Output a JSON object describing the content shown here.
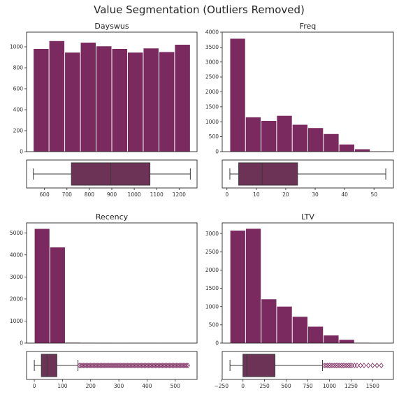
{
  "title": "Value Segmentation (Outliers Removed)",
  "colors": {
    "bar": "#7b2a5f",
    "box": "#6c3356",
    "outlier": "#7b2a5f",
    "line": "#3a3a3a"
  },
  "chart_data": [
    {
      "type": "bar",
      "title": "Dayswus",
      "bin_edges": [
        550,
        620,
        690,
        760,
        830,
        900,
        970,
        1040,
        1110,
        1180,
        1250
      ],
      "values": [
        980,
        1055,
        945,
        1040,
        1005,
        980,
        945,
        985,
        950,
        1020
      ],
      "ylim": [
        0,
        1140
      ],
      "yticks": [
        0,
        200,
        400,
        600,
        800,
        1000
      ],
      "xlim": [
        520,
        1280
      ],
      "xticks": [
        600,
        700,
        800,
        900,
        1000,
        1100,
        1200
      ],
      "box": {
        "whisker_low": 550,
        "q1": 720,
        "median": 895,
        "q3": 1070,
        "whisker_high": 1250,
        "outliers": []
      }
    },
    {
      "type": "bar",
      "title": "Freq",
      "bin_edges": [
        1,
        6.3,
        11.6,
        16.9,
        22.2,
        27.5,
        32.8,
        38.1,
        43.4,
        48.7,
        54
      ],
      "values": [
        3780,
        1150,
        1030,
        1200,
        900,
        790,
        590,
        240,
        80,
        10
      ],
      "ylim": [
        0,
        4000
      ],
      "yticks": [
        0,
        500,
        1000,
        1500,
        2000,
        2500,
        3000,
        3500,
        4000
      ],
      "xlim": [
        -1.6,
        56.6
      ],
      "xticks": [
        0,
        10,
        20,
        30,
        40,
        50
      ],
      "box": {
        "whisker_low": 1,
        "q1": 4,
        "median": 12,
        "q3": 24,
        "whisker_high": 54,
        "outliers": []
      }
    },
    {
      "type": "bar",
      "title": "Recency",
      "bin_edges": [
        0,
        55,
        110,
        165,
        220,
        275,
        330,
        385,
        440,
        495,
        550
      ],
      "values": [
        5180,
        4340,
        20,
        15,
        12,
        0,
        8,
        8,
        8,
        10
      ],
      "ylim": [
        0,
        5450
      ],
      "yticks": [
        0,
        1000,
        2000,
        3000,
        4000,
        5000
      ],
      "xlim": [
        -27.5,
        577.5
      ],
      "xticks": [
        0,
        100,
        200,
        300,
        400,
        500
      ],
      "box": {
        "whisker_low": 0,
        "q1": 25,
        "median": 45,
        "q3": 80,
        "whisker_high": 155,
        "outliers": [
          160,
          165,
          170,
          175,
          180,
          185,
          190,
          195,
          200,
          205,
          210,
          215,
          220,
          225,
          230,
          235,
          240,
          245,
          250,
          255,
          260,
          265,
          270,
          275,
          280,
          285,
          290,
          295,
          300,
          305,
          310,
          315,
          320,
          325,
          330,
          335,
          340,
          345,
          350,
          355,
          360,
          365,
          370,
          375,
          380,
          385,
          390,
          395,
          400,
          405,
          410,
          415,
          420,
          425,
          430,
          435,
          440,
          445,
          450,
          455,
          460,
          465,
          470,
          475,
          480,
          485,
          490,
          495,
          500,
          505,
          510,
          515,
          520,
          525,
          530,
          535,
          540,
          545
        ]
      }
    },
    {
      "type": "bar",
      "title": "LTV",
      "bin_edges": [
        -150,
        30,
        210,
        390,
        570,
        750,
        930,
        1110,
        1290,
        1470,
        1650
      ],
      "values": [
        3080,
        3130,
        1200,
        1000,
        720,
        450,
        210,
        90,
        10,
        0
      ],
      "ylim": [
        0,
        3290
      ],
      "yticks": [
        0,
        500,
        1000,
        1500,
        2000,
        2500,
        3000
      ],
      "xlim": [
        -240,
        1740
      ],
      "xticks": [
        -250,
        0,
        250,
        500,
        750,
        1000,
        1250,
        1500
      ],
      "box": {
        "whisker_low": -150,
        "q1": 0,
        "median": 45,
        "q3": 370,
        "whisker_high": 920,
        "outliers": [
          940,
          960,
          980,
          1000,
          1020,
          1040,
          1060,
          1080,
          1100,
          1120,
          1140,
          1160,
          1180,
          1200,
          1220,
          1240,
          1260,
          1290,
          1320,
          1360,
          1400,
          1450,
          1500,
          1550,
          1600
        ]
      }
    }
  ]
}
